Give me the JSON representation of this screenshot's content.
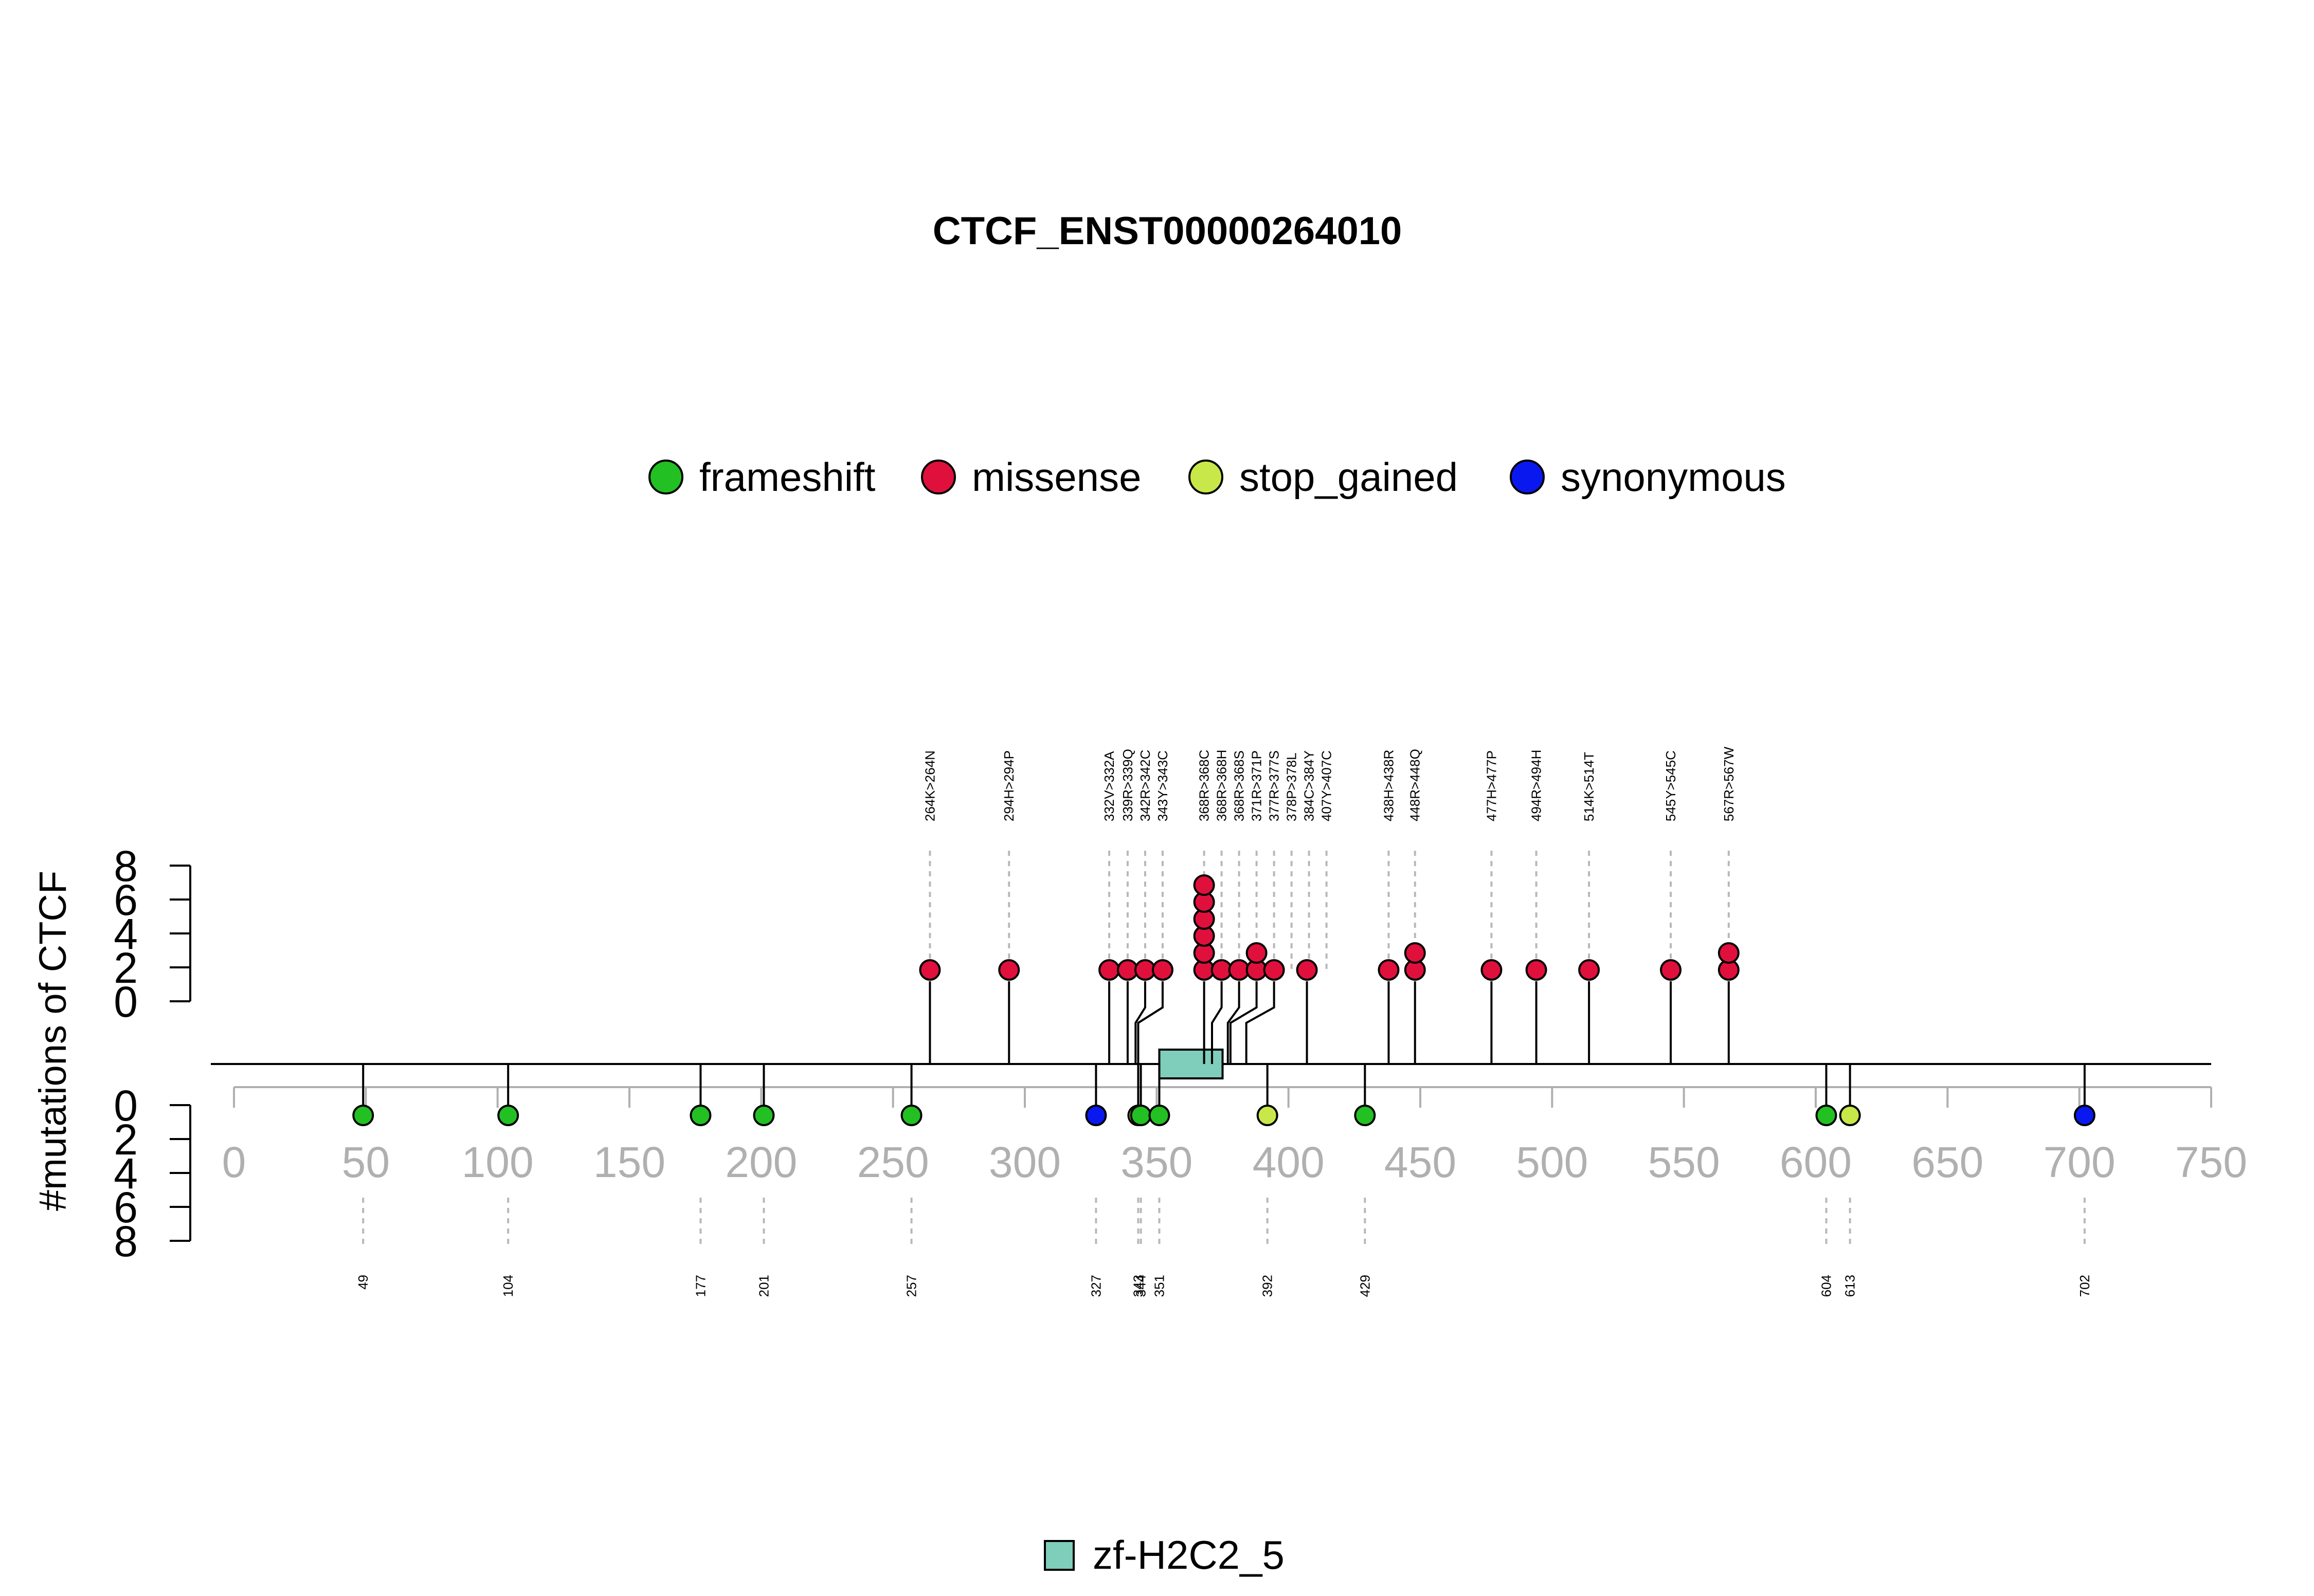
{
  "chart_data": {
    "type": "lollipop",
    "title": "CTCF_ENST00000264010",
    "ylabel": "#mutations of CTCF",
    "xlim": [
      0,
      750
    ],
    "x_ticks": [
      0,
      50,
      100,
      150,
      200,
      250,
      300,
      350,
      400,
      450,
      500,
      550,
      600,
      650,
      700,
      750
    ],
    "y_ticks_top": [
      0,
      2,
      4,
      6,
      8
    ],
    "y_ticks_bottom": [
      0,
      2,
      4,
      6,
      8
    ],
    "legend_top": [
      {
        "label": "frameshift",
        "color": "#22c022"
      },
      {
        "label": "missense",
        "color": "#e0103c"
      },
      {
        "label": "stop_gained",
        "color": "#c8e84a"
      },
      {
        "label": "synonymous",
        "color": "#0a18f0"
      }
    ],
    "domains": [
      {
        "name": "zf-H2C2_5",
        "start": 351,
        "end": 375,
        "color": "#7fcdbb"
      }
    ],
    "legend_bottom": [
      {
        "label": "zf-H2C2_5",
        "color": "#7fcdbb"
      }
    ],
    "top_mutations": [
      {
        "position": 264,
        "label": "264K>264N",
        "count": 1,
        "type": "missense"
      },
      {
        "position": 294,
        "label": "294H>294P",
        "count": 1,
        "type": "missense"
      },
      {
        "position": 332,
        "label": "332V>332A",
        "count": 1,
        "type": "missense"
      },
      {
        "position": 339,
        "label": "339R>339Q",
        "count": 1,
        "type": "missense"
      },
      {
        "position": 342,
        "label": "342R>342C",
        "count": 1,
        "type": "missense"
      },
      {
        "position": 343,
        "label": "343Y>343C",
        "count": 1,
        "type": "missense"
      },
      {
        "position": 368,
        "label": "368R>368C",
        "count": 3,
        "type": "missense"
      },
      {
        "position": 368,
        "label": "368R>368H",
        "count": 2,
        "type": "missense"
      },
      {
        "position": 368,
        "label": "368R>368S",
        "count": 1,
        "type": "missense"
      },
      {
        "position": 371,
        "label": "371R>371P",
        "count": 1,
        "type": "missense"
      },
      {
        "position": 377,
        "label": "377R>377S",
        "count": 1,
        "type": "missense"
      },
      {
        "position": 378,
        "label": "378P>378L",
        "count": 2,
        "type": "missense"
      },
      {
        "position": 384,
        "label": "384C>384Y",
        "count": 1,
        "type": "missense"
      },
      {
        "position": 407,
        "label": "407Y>407C",
        "count": 1,
        "type": "missense"
      },
      {
        "position": 438,
        "label": "438H>438R",
        "count": 1,
        "type": "missense"
      },
      {
        "position": 448,
        "label": "448R>448Q",
        "count": 2,
        "type": "missense"
      },
      {
        "position": 477,
        "label": "477H>477P",
        "count": 1,
        "type": "missense"
      },
      {
        "position": 494,
        "label": "494R>494H",
        "count": 1,
        "type": "missense"
      },
      {
        "position": 514,
        "label": "514K>514T",
        "count": 1,
        "type": "missense"
      },
      {
        "position": 545,
        "label": "545Y>545C",
        "count": 1,
        "type": "missense"
      },
      {
        "position": 567,
        "label": "567R>567W",
        "count": 2,
        "type": "missense"
      }
    ],
    "bottom_mutations": [
      {
        "position": 49,
        "label": "49",
        "count": 1,
        "type": "frameshift"
      },
      {
        "position": 104,
        "label": "104",
        "count": 1,
        "type": "frameshift"
      },
      {
        "position": 177,
        "label": "177",
        "count": 1,
        "type": "frameshift"
      },
      {
        "position": 201,
        "label": "201",
        "count": 1,
        "type": "frameshift"
      },
      {
        "position": 257,
        "label": "257",
        "count": 1,
        "type": "frameshift"
      },
      {
        "position": 327,
        "label": "327",
        "count": 1,
        "type": "synonymous"
      },
      {
        "position": 343,
        "label": "343",
        "count": 1,
        "type": "stop_gained"
      },
      {
        "position": 344,
        "label": "344",
        "count": 1,
        "type": "frameshift"
      },
      {
        "position": 351,
        "label": "351",
        "count": 1,
        "type": "frameshift"
      },
      {
        "position": 392,
        "label": "392",
        "count": 1,
        "type": "stop_gained"
      },
      {
        "position": 429,
        "label": "429",
        "count": 1,
        "type": "frameshift"
      },
      {
        "position": 604,
        "label": "604",
        "count": 1,
        "type": "frameshift"
      },
      {
        "position": 613,
        "label": "613",
        "count": 1,
        "type": "stop_gained"
      },
      {
        "position": 702,
        "label": "702",
        "count": 1,
        "type": "synonymous"
      }
    ]
  }
}
